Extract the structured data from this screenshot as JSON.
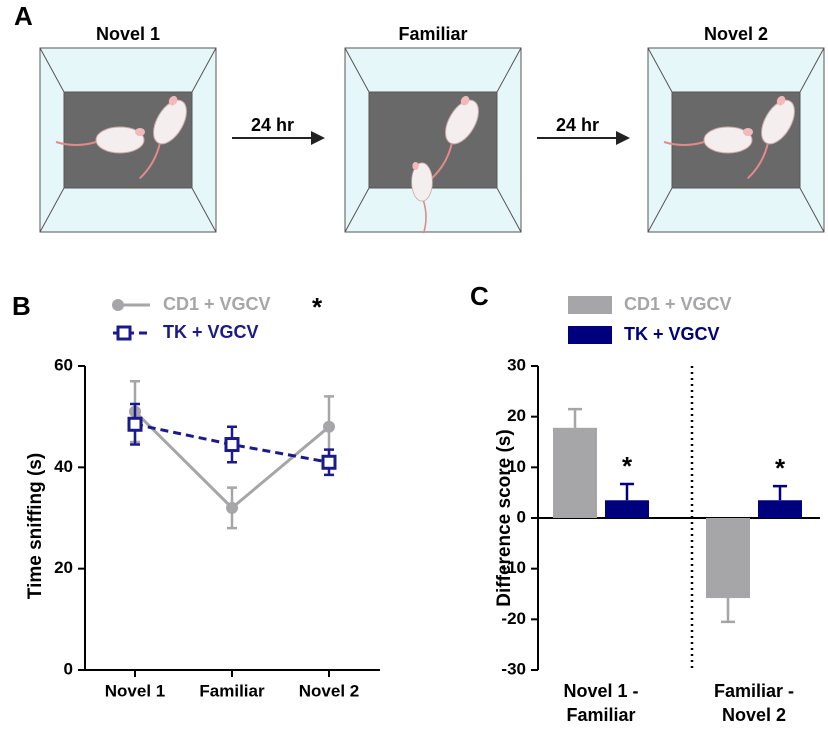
{
  "panel_a": {
    "label": "A",
    "stages": [
      "Novel 1",
      "Familiar",
      "Novel 2"
    ],
    "arrows": [
      "24 hr",
      "24 hr"
    ]
  },
  "chart_data": [
    {
      "type": "line",
      "panel": "B",
      "ylabel": "Time sniffing (s)",
      "categories": [
        "Novel 1",
        "Familiar",
        "Novel 2"
      ],
      "series": [
        {
          "name": "CD1 + VGCV",
          "color": "#a6a6a8",
          "values": [
            51,
            32,
            48
          ],
          "errors": [
            6,
            4,
            6
          ],
          "marker": "circle",
          "dashed": false
        },
        {
          "name": "TK + VGCV",
          "color": "#1a1a8c",
          "values": [
            48.5,
            44.5,
            41
          ],
          "errors": [
            4,
            3.5,
            2.5
          ],
          "marker": "square",
          "dashed": true
        }
      ],
      "legend_annotation": "*",
      "ylim": [
        0,
        60
      ],
      "yticks": [
        0,
        20,
        40,
        60
      ]
    },
    {
      "type": "bar",
      "panel": "C",
      "ylabel": "Difference score (s)",
      "categories": [
        [
          "Novel 1 -",
          "Familiar"
        ],
        [
          "Familiar -",
          "Novel 2"
        ]
      ],
      "series": [
        {
          "name": "CD1 + VGCV",
          "color": "#a6a6a8",
          "values": [
            17.8,
            -15.8
          ],
          "errors": [
            3.7,
            4.7
          ]
        },
        {
          "name": "TK + VGCV",
          "color": "#00007f",
          "values": [
            3.5,
            3.5
          ],
          "errors": [
            3.2,
            2.8
          ],
          "annotations": [
            "*",
            "*"
          ]
        }
      ],
      "ylim": [
        -30,
        30
      ],
      "yticks": [
        -30,
        -20,
        -10,
        0,
        10,
        20,
        30
      ]
    }
  ]
}
